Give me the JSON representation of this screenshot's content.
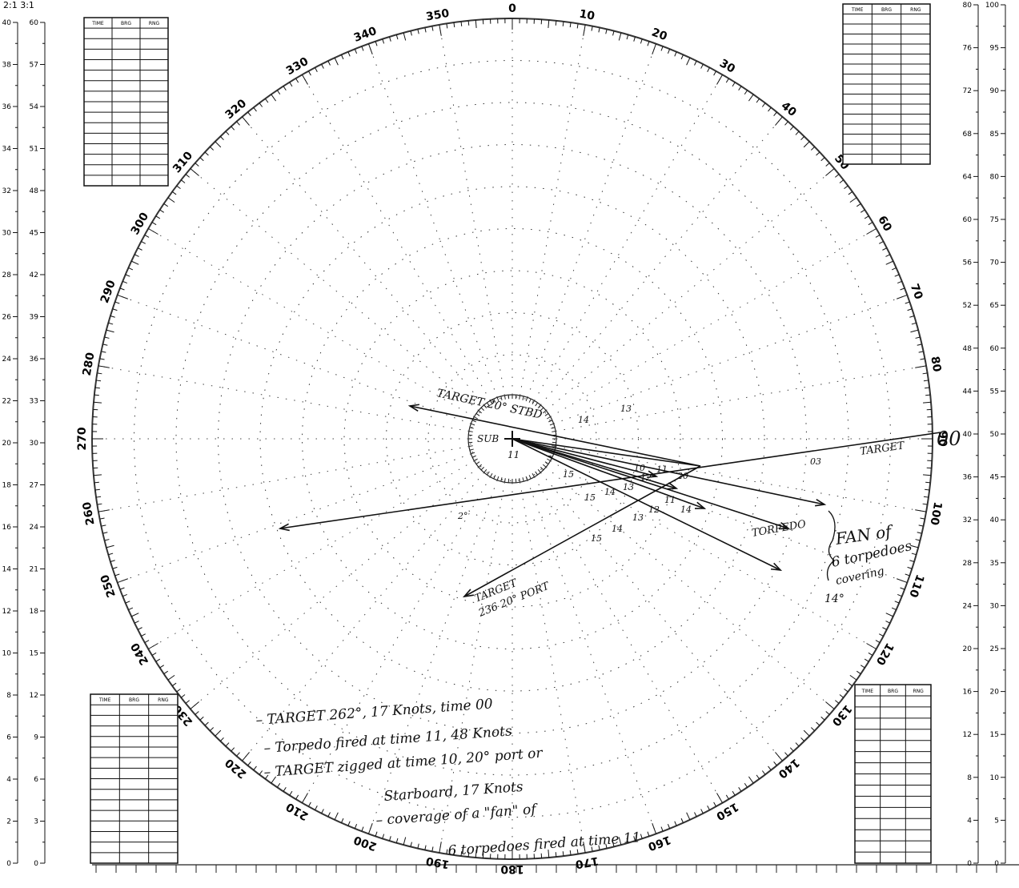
{
  "header": {
    "ratio_labels": "2:1  3:1"
  },
  "bearings": [
    0,
    10,
    20,
    30,
    40,
    50,
    60,
    70,
    80,
    90,
    100,
    110,
    120,
    130,
    140,
    150,
    160,
    170,
    180,
    190,
    200,
    210,
    220,
    230,
    240,
    250,
    260,
    270,
    280,
    290,
    300,
    310,
    320,
    330,
    340,
    350
  ],
  "scales": {
    "left_a": [
      0,
      2,
      4,
      6,
      8,
      10,
      12,
      14,
      16,
      18,
      20,
      22,
      24,
      26,
      28,
      30,
      32,
      34,
      36,
      38,
      40
    ],
    "left_b": [
      0,
      3,
      6,
      9,
      12,
      15,
      18,
      21,
      24,
      27,
      30,
      33,
      36,
      39,
      42,
      45,
      48,
      51,
      54,
      57,
      60
    ],
    "right_a": [
      0,
      4,
      8,
      12,
      16,
      20,
      24,
      28,
      32,
      36,
      40,
      44,
      48,
      52,
      56,
      60,
      64,
      68,
      72,
      76,
      80
    ],
    "right_b": [
      0,
      5,
      10,
      15,
      20,
      25,
      30,
      35,
      40,
      45,
      50,
      55,
      60,
      65,
      70,
      75,
      80,
      85,
      90,
      95,
      100
    ]
  },
  "plot_tables": [
    {
      "headers": [
        "TIME",
        "BRG",
        "RNG"
      ]
    },
    {
      "headers": [
        "TIME",
        "BRG",
        "RNG"
      ]
    },
    {
      "headers": [
        "TIME",
        "BRG",
        "RNG"
      ]
    },
    {
      "headers": [
        "TIME",
        "BRG",
        "RNG"
      ]
    }
  ],
  "annotations": {
    "target_stbd": "TARGET 20° STBD",
    "sub": "SUB",
    "sub_time": "11",
    "target_start_time": "00",
    "target_label": "TARGET",
    "torpedo_label": "TORPEDO",
    "fan": [
      "FAN of",
      "6 torpedoes",
      "covering",
      "14°"
    ],
    "target_port": [
      "TARGET",
      "236 20° PORT"
    ]
  },
  "plot_labels": [
    "03",
    "15",
    "14",
    "13",
    "12",
    "11",
    "10",
    "15",
    "14",
    "13",
    "12",
    "11",
    "20",
    "15",
    "14",
    "13",
    "14",
    "2°"
  ],
  "notes": [
    "– TARGET 262°, 17 Knots, time 00",
    "– Torpedo fired at time 11, 48 Knots",
    "– TARGET zigged at time 10, 20° port or",
    "Starboard, 17 Knots",
    "– coverage of a \"fan\" of",
    "6 torpedoes fired at time 11"
  ]
}
